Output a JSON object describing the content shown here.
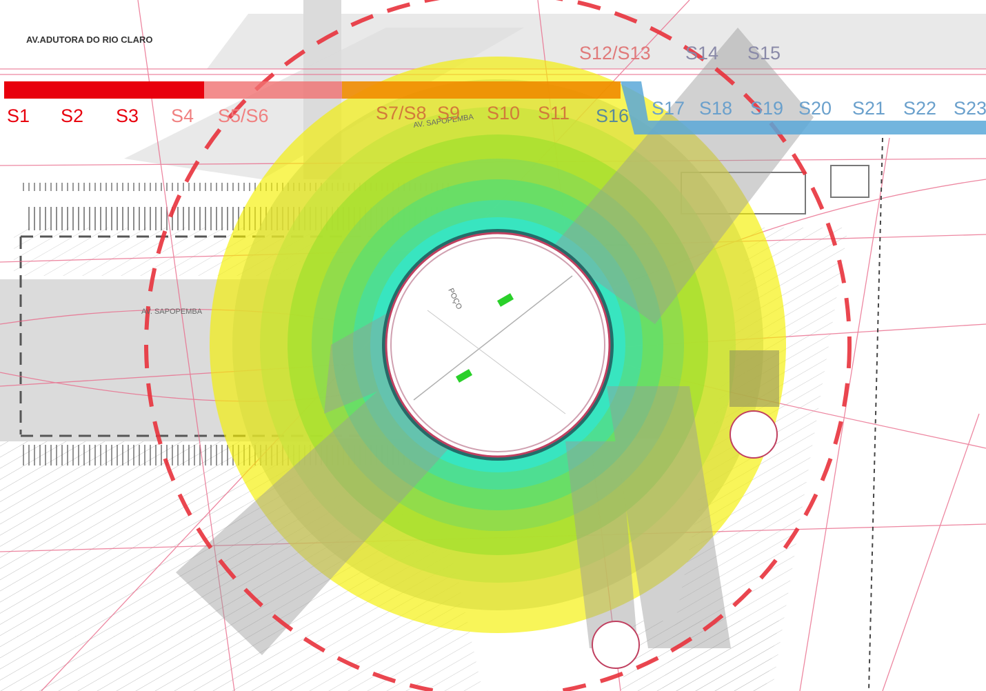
{
  "map": {
    "street_labels": {
      "adutora": "AV.ADUTORA DO RIO CLARO",
      "sapopemba_left": "AV. SAPOPEMBA",
      "sapopemba_top": "AV. SAPOPEMBA",
      "poco": "POÇO"
    },
    "colors": {
      "sections_red": "#e8000d",
      "sections_orange": "#f08c00",
      "sections_blue": "#5aa8d8",
      "buffer_outer": "#f5f000",
      "buffer_mid": "#9adf2a",
      "buffer_inner": "#2ce8d8",
      "dashed_circle": "#e8323c",
      "corridor_gray": "#9a9a9a"
    },
    "sections_red": [
      {
        "id": "s1",
        "label": "S1"
      },
      {
        "id": "s2",
        "label": "S2"
      },
      {
        "id": "s3",
        "label": "S3"
      },
      {
        "id": "s4",
        "label": "S4"
      },
      {
        "id": "s5-s6",
        "label": "S5/S6"
      }
    ],
    "sections_orange": [
      {
        "id": "s7-s8",
        "label": "S7/S8"
      },
      {
        "id": "s9",
        "label": "S9"
      },
      {
        "id": "s10",
        "label": "S10"
      },
      {
        "id": "s11",
        "label": "S11"
      }
    ],
    "sections_top": [
      {
        "id": "s12-s13",
        "label": "S12/S13"
      },
      {
        "id": "s14",
        "label": "S14"
      },
      {
        "id": "s15",
        "label": "S15"
      }
    ],
    "sections_blue": [
      {
        "id": "s16",
        "label": "S16"
      },
      {
        "id": "s17",
        "label": "S17"
      },
      {
        "id": "s18",
        "label": "S18"
      },
      {
        "id": "s19",
        "label": "S19"
      },
      {
        "id": "s20",
        "label": "S20"
      },
      {
        "id": "s21",
        "label": "S21"
      },
      {
        "id": "s22",
        "label": "S22"
      },
      {
        "id": "s23",
        "label": "S23"
      }
    ]
  }
}
